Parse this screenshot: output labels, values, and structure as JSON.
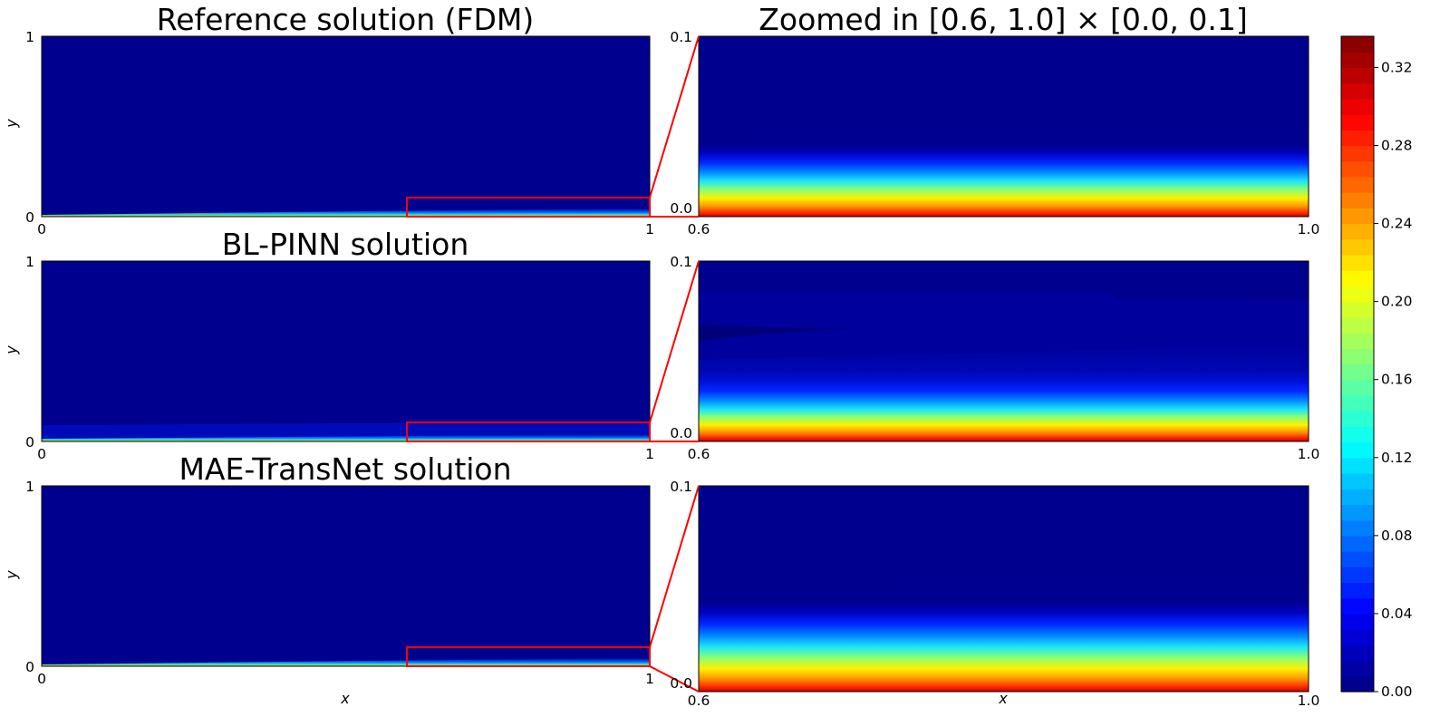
{
  "figure": {
    "colorbar": {
      "ticks": [
        "0.00",
        "0.04",
        "0.08",
        "0.12",
        "0.16",
        "0.20",
        "0.24",
        "0.28",
        "0.32"
      ],
      "max": 0.336,
      "colormap": "jet",
      "levels": 42
    }
  },
  "chart_data": [
    {
      "type": "heatmap",
      "title": "Reference solution (FDM)",
      "xlabel": "",
      "ylabel": "y",
      "xlim": [
        0,
        1
      ],
      "ylim": [
        0,
        1
      ],
      "xticks": [
        "0",
        "1"
      ],
      "yticks": [
        "0",
        "1"
      ],
      "inset_box": {
        "x": [
          0.6,
          1.0
        ],
        "y": [
          0.0,
          0.1
        ],
        "color": "#ff0000"
      }
    },
    {
      "type": "heatmap",
      "title": "Zoomed in [0.6, 1.0] × [0.0, 0.1]",
      "xlabel": "",
      "ylabel": "",
      "xlim": [
        0.6,
        1.0
      ],
      "ylim": [
        0.0,
        0.1
      ],
      "xticks": [
        "0.6",
        "1.0"
      ],
      "yticks": [
        "0.0",
        "0.1"
      ],
      "layer_top_y": [
        0.045,
        0.053
      ]
    },
    {
      "type": "heatmap",
      "title": "BL-PINN solution",
      "xlabel": "",
      "ylabel": "y",
      "xlim": [
        0,
        1
      ],
      "ylim": [
        0,
        1
      ],
      "xticks": [
        "0",
        "1"
      ],
      "yticks": [
        "0",
        "1"
      ],
      "inset_box": {
        "x": [
          0.6,
          1.0
        ],
        "y": [
          0.0,
          0.1
        ],
        "color": "#ff0000"
      }
    },
    {
      "type": "heatmap",
      "title": "",
      "xlabel": "",
      "ylabel": "",
      "xlim": [
        0.6,
        1.0
      ],
      "ylim": [
        0.0,
        0.1
      ],
      "xticks": [
        "0.6",
        "1.0"
      ],
      "yticks": [
        "0.0",
        "0.1"
      ],
      "layer_top_y": [
        0.05,
        0.055
      ]
    },
    {
      "type": "heatmap",
      "title": "MAE-TransNet solution",
      "xlabel": "x",
      "ylabel": "y",
      "xlim": [
        0,
        1
      ],
      "ylim": [
        0,
        1
      ],
      "xticks": [
        "0",
        "1"
      ],
      "yticks": [
        "0",
        "1"
      ],
      "inset_box": {
        "x": [
          0.6,
          1.0
        ],
        "y": [
          0.0,
          0.1
        ],
        "color": "#ff0000"
      }
    },
    {
      "type": "heatmap",
      "title": "",
      "xlabel": "x",
      "ylabel": "",
      "xlim": [
        0.6,
        1.0
      ],
      "ylim": [
        0.0,
        0.1
      ],
      "xticks": [
        "0.6",
        "1.0"
      ],
      "yticks": [
        "0.0",
        "0.1"
      ],
      "layer_top_y": [
        0.045,
        0.053
      ]
    }
  ]
}
